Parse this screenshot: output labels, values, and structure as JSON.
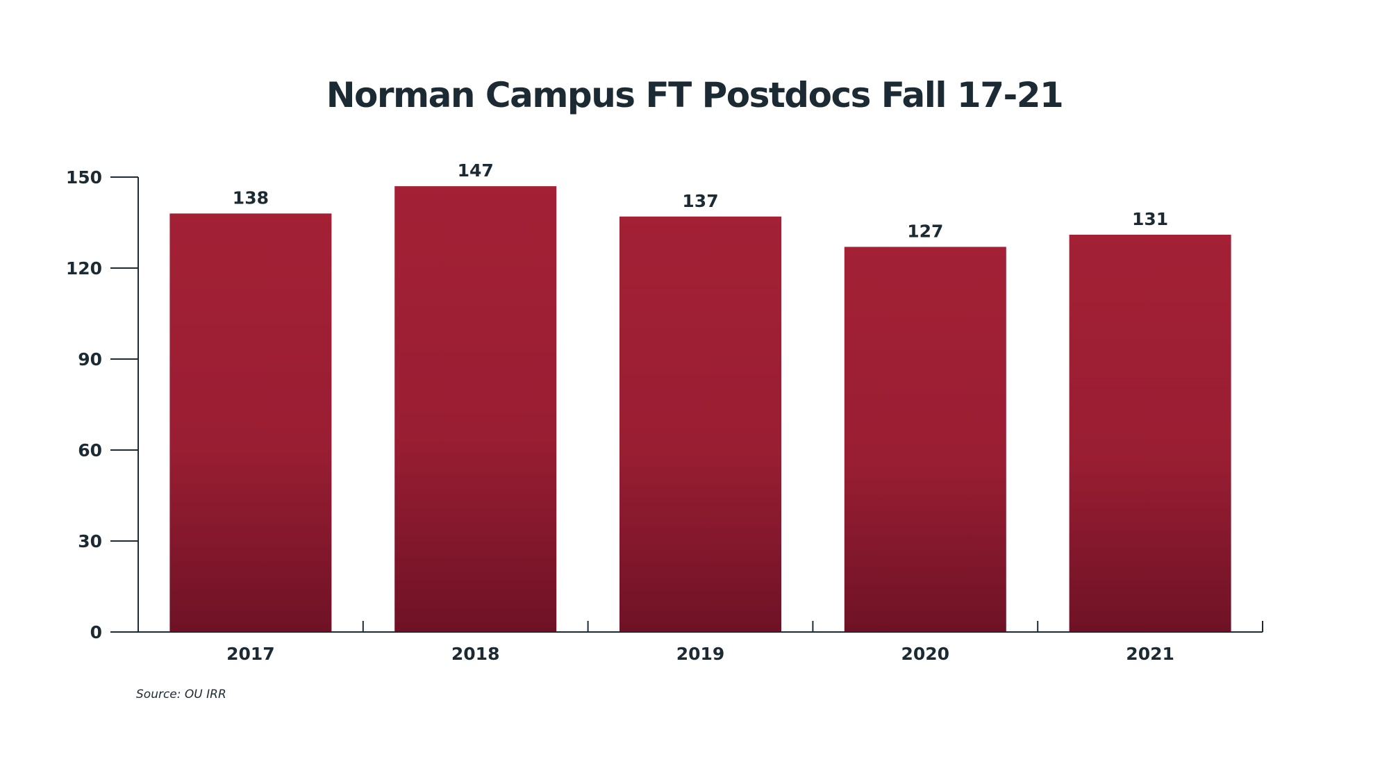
{
  "chart_data": {
    "type": "bar",
    "title": "Norman Campus FT Postdocs Fall 17-21",
    "categories": [
      "2017",
      "2018",
      "2019",
      "2020",
      "2021"
    ],
    "values": [
      138,
      147,
      137,
      127,
      131
    ],
    "data_labels": [
      "138",
      "147",
      "137",
      "127",
      "131"
    ],
    "xlabel": "",
    "ylabel": "",
    "ylim": [
      0,
      150
    ],
    "yticks": [
      0,
      30,
      60,
      90,
      120,
      150
    ],
    "ytick_labels": [
      "0",
      "30",
      "60",
      "90",
      "120",
      "150"
    ],
    "grid": false,
    "legend": "none"
  },
  "colors": {
    "bar_top": "#a32035",
    "bar_bottom": "#6f1226",
    "axis": "#1c2a33",
    "text": "#1c2a33"
  },
  "source": "Source: OU IRR"
}
